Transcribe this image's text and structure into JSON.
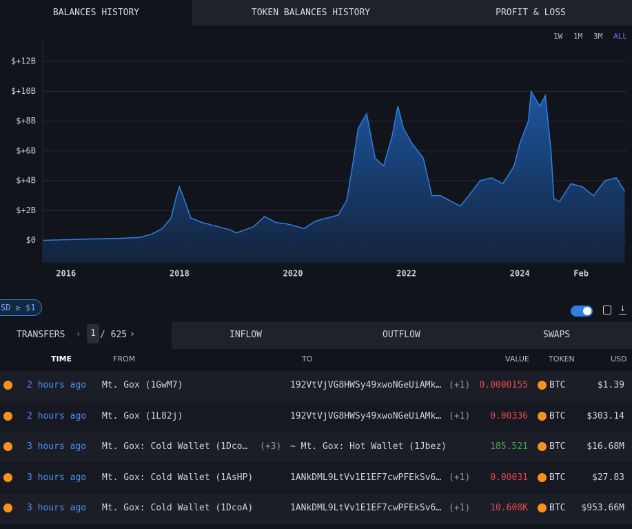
{
  "tabs": [
    "BALANCES HISTORY",
    "TOKEN BALANCES HISTORY",
    "PROFIT & LOSS"
  ],
  "time_ranges": [
    "1W",
    "1M",
    "3M",
    "ALL"
  ],
  "chart_data": {
    "type": "area",
    "color": "#2f7fe0",
    "grid": true,
    "x": [
      2015.6,
      2016.0,
      2016.5,
      2017.0,
      2017.3,
      2017.5,
      2017.7,
      2017.85,
      2017.95,
      2018.0,
      2018.1,
      2018.2,
      2018.4,
      2018.6,
      2018.9,
      2019.0,
      2019.3,
      2019.5,
      2019.7,
      2019.9,
      2020.2,
      2020.4,
      2020.6,
      2020.8,
      2020.95,
      2021.05,
      2021.15,
      2021.3,
      2021.45,
      2021.6,
      2021.75,
      2021.85,
      2021.95,
      2022.1,
      2022.3,
      2022.45,
      2022.6,
      2022.8,
      2022.95,
      2023.1,
      2023.3,
      2023.5,
      2023.7,
      2023.9,
      2024.0,
      2024.15,
      2024.2,
      2024.35,
      2024.45,
      2024.55,
      2024.6,
      2024.7,
      2024.9,
      2025.1,
      2025.3,
      2025.5,
      2025.7,
      2025.85
    ],
    "values": [
      0.0,
      0.05,
      0.1,
      0.15,
      0.2,
      0.4,
      0.8,
      1.5,
      3.0,
      3.6,
      2.6,
      1.5,
      1.2,
      1.0,
      0.7,
      0.5,
      0.9,
      1.6,
      1.2,
      1.1,
      0.8,
      1.3,
      1.5,
      1.7,
      2.7,
      5.0,
      7.5,
      8.5,
      5.5,
      5.0,
      7.0,
      9.0,
      7.5,
      6.5,
      5.5,
      3.0,
      3.0,
      2.6,
      2.3,
      3.0,
      4.0,
      4.2,
      3.8,
      5.0,
      6.5,
      8.0,
      10.0,
      9.0,
      9.7,
      6.0,
      2.8,
      2.6,
      3.8,
      3.6,
      3.0,
      4.0,
      4.2,
      3.3
    ],
    "xlim": [
      2015.59,
      2025.88
    ],
    "xticks": [
      2016,
      2018,
      2020,
      2022,
      2024,
      {
        "value": 2025.08,
        "label": "Feb"
      }
    ],
    "ylim": [
      -1.5,
      13.25
    ],
    "yticks": [
      {
        "value": 0,
        "label": "$0"
      },
      {
        "value": 2,
        "label": "$+2B"
      },
      {
        "value": 4,
        "label": "$+4B"
      },
      {
        "value": 6,
        "label": "$+6B"
      },
      {
        "value": 8,
        "label": "$+8B"
      },
      {
        "value": 10,
        "label": "$+10B"
      },
      {
        "value": 12,
        "label": "$+12B"
      }
    ]
  },
  "filter": "SD ≥ $1",
  "transfer_tabs": [
    "TRANSFERS",
    "INFLOW",
    "OUTFLOW",
    "SWAPS"
  ],
  "pagination": {
    "page": "1",
    "total": "/ 625"
  },
  "table": {
    "headers": [
      "TIME",
      "FROM",
      "TO",
      "VALUE",
      "TOKEN",
      "USD"
    ],
    "rows": [
      {
        "time": "2 hours ago",
        "from": "Mt. Gox (1GwM7)",
        "from_extra": "",
        "to": "192VtVjVG8HWSy49xwoNGeUiAMk…",
        "to_extra": "(+1)",
        "value": "0.0000155",
        "value_color": "#e5484d",
        "token": "BTC",
        "usd": "$1.39"
      },
      {
        "time": "2 hours ago",
        "from": "Mt. Gox (1L82j)",
        "from_extra": "",
        "to": "192VtVjVG8HWSy49xwoNGeUiAMk…",
        "to_extra": "(+1)",
        "value": "0.00336",
        "value_color": "#e5484d",
        "token": "BTC",
        "usd": "$303.14"
      },
      {
        "time": "3 hours ago",
        "from": "Mt. Gox: Cold Wallet (1Dco…",
        "from_extra": "(+3)",
        "to": "~ Mt. Gox: Hot Wallet (1Jbez)",
        "to_extra": "",
        "value": "185.521",
        "value_color": "#46a758",
        "token": "BTC",
        "usd": "$16.68M"
      },
      {
        "time": "3 hours ago",
        "from": "Mt. Gox: Cold Wallet (1AsHP)",
        "from_extra": "",
        "to": "1ANkDML9LtVv1E1EF7cwPFEkSv6…",
        "to_extra": "(+1)",
        "value": "0.00031",
        "value_color": "#e5484d",
        "token": "BTC",
        "usd": "$27.83"
      },
      {
        "time": "3 hours ago",
        "from": "Mt. Gox: Cold Wallet (1DcoA)",
        "from_extra": "",
        "to": "1ANkDML9LtVv1E1EF7cwPFEkSv6…",
        "to_extra": "(+1)",
        "value": "10.608K",
        "value_color": "#e5484d",
        "token": "BTC",
        "usd": "$953.66M"
      }
    ]
  }
}
